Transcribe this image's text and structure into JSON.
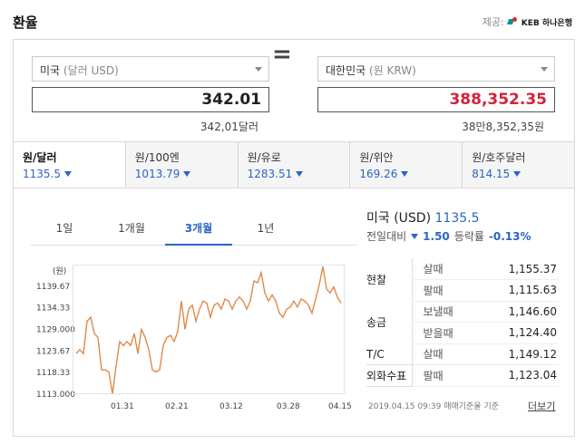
{
  "header": {
    "title": "환율",
    "provider_label": "제공:",
    "provider_logo_text": "KEB 하나은행"
  },
  "converter": {
    "from_select": {
      "name": "미국",
      "sub": "(달러 USD)"
    },
    "from_amount": "342.01",
    "from_words": "342,01달러",
    "equals": "=",
    "to_select": {
      "name": "대한민국",
      "sub": "(원 KRW)"
    },
    "to_amount": "388,352.35",
    "to_words": "38만8,352,35원"
  },
  "tabs": [
    {
      "name": "원/달러",
      "value": "1135.5"
    },
    {
      "name": "원/100엔",
      "value": "1013.79"
    },
    {
      "name": "원/유로",
      "value": "1283.51"
    },
    {
      "name": "원/위안",
      "value": "169.26"
    },
    {
      "name": "원/호주달러",
      "value": "814.15"
    }
  ],
  "periods": [
    "1일",
    "1개월",
    "3개월",
    "1년"
  ],
  "active_period": "3개월",
  "summary": {
    "country": "미국 (USD)",
    "rate": "1135.5",
    "change_label": "전일대비",
    "change": "1.50",
    "rate_label": "등락률",
    "change_pct": "-0.13%"
  },
  "rates_table": {
    "groups": [
      {
        "label": "현찰",
        "rows": [
          {
            "kind": "살때",
            "value": "1,155.37"
          },
          {
            "kind": "팔때",
            "value": "1,115.63"
          }
        ]
      },
      {
        "label": "송금",
        "rows": [
          {
            "kind": "보낼때",
            "value": "1,146.60"
          },
          {
            "kind": "받을때",
            "value": "1,124.40"
          }
        ]
      },
      {
        "label": "T/C",
        "rows": [
          {
            "kind": "살때",
            "value": "1,149.12"
          }
        ]
      },
      {
        "label": "외화수표",
        "rows": [
          {
            "kind": "팔때",
            "value": "1,123.04"
          }
        ]
      }
    ]
  },
  "footer": {
    "note": "2019.04.15 09:39 매매기준율 기준",
    "more_link": "더보기"
  },
  "colors": {
    "accent": "#2a64c6",
    "line": "#e08a4a",
    "negative": "#d6213b"
  },
  "chart_data": {
    "type": "line",
    "ylabel": "(원)",
    "yticks": [
      1113.0,
      1118.33,
      1123.67,
      1129.0,
      1134.33,
      1139.67
    ],
    "ylim": [
      1113.0,
      1145.0
    ],
    "xticks": [
      "01.31",
      "02.21",
      "03.12",
      "03.28",
      "04.15"
    ],
    "series": [
      {
        "values": [
          1123.0,
          1124.0,
          1123.0,
          1131.0,
          1132.0,
          1128.0,
          1127.0,
          1119.0,
          1119.0,
          1118.5,
          1113.0,
          1120.0,
          1126.0,
          1125.0,
          1126.0,
          1125.0,
          1128.0,
          1123.0,
          1129.0,
          1127.0,
          1124.0,
          1119.0,
          1118.5,
          1119.0,
          1125.0,
          1127.0,
          1127.5,
          1126.0,
          1128.5,
          1136.0,
          1129.0,
          1134.0,
          1135.0,
          1131.0,
          1134.0,
          1136.0,
          1135.5,
          1132.0,
          1135.0,
          1135.5,
          1134.0,
          1136.5,
          1136.0,
          1134.0,
          1136.0,
          1137.0,
          1136.0,
          1134.0,
          1136.0,
          1141.0,
          1140.5,
          1143.0,
          1138.0,
          1136.0,
          1137.5,
          1136.0,
          1133.0,
          1132.0,
          1134.0,
          1134.5,
          1136.0,
          1134.5,
          1136.5,
          1136.0,
          1135.0,
          1133.0,
          1136.5,
          1140.0,
          1144.5,
          1139.0,
          1138.0,
          1139.5,
          1137.0,
          1135.5
        ]
      }
    ],
    "grid": false
  }
}
